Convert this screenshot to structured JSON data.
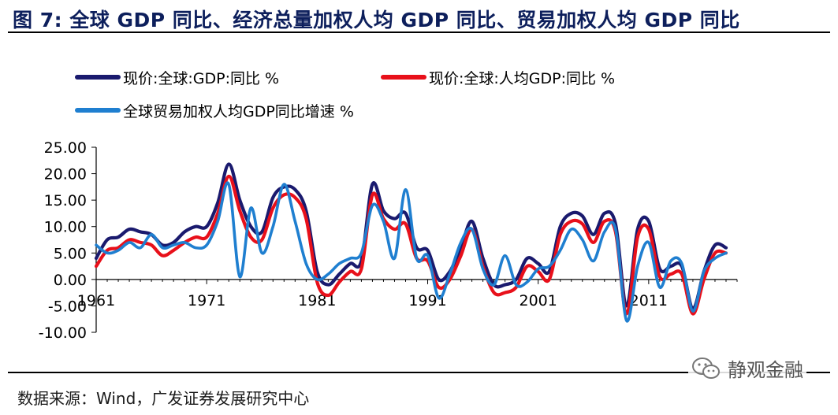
{
  "header": {
    "title": "图 7:  全球 GDP 同比、经济总量加权人均 GDP 同比、贸易加权人均 GDP 同比"
  },
  "footer": {
    "source": "数据来源：Wind，广发证券发展研究中心"
  },
  "watermark": {
    "text": "静观金融",
    "icon": "wechat-icon"
  },
  "chart_data": {
    "type": "line",
    "title": "",
    "xlabel": "",
    "ylabel": "",
    "ylim": [
      -10,
      25
    ],
    "ytick_labels": [
      "25.00",
      "20.00",
      "15.00",
      "10.00",
      "5.00",
      "0.00",
      "-5.00",
      "-10.00"
    ],
    "ytick_values": [
      25,
      20,
      15,
      10,
      5,
      0,
      -5,
      -10
    ],
    "xtick_labels": [
      "1961",
      "1971",
      "1981",
      "1991",
      "2001",
      "2011"
    ],
    "xtick_values": [
      1961,
      1971,
      1981,
      1991,
      2001,
      2011
    ],
    "x": [
      1961,
      1962,
      1963,
      1964,
      1965,
      1966,
      1967,
      1968,
      1969,
      1970,
      1971,
      1972,
      1973,
      1974,
      1975,
      1976,
      1977,
      1978,
      1979,
      1980,
      1981,
      1982,
      1983,
      1984,
      1985,
      1986,
      1987,
      1988,
      1989,
      1990,
      1991,
      1992,
      1993,
      1994,
      1995,
      1996,
      1997,
      1998,
      1999,
      2000,
      2001,
      2002,
      2003,
      2004,
      2005,
      2006,
      2007,
      2008,
      2009,
      2010,
      2011,
      2012,
      2013,
      2014,
      2015,
      2016,
      2017,
      2018
    ],
    "series": [
      {
        "name": "现价:全球:GDP:同比 %",
        "color": "#1a1a6e",
        "values": [
          4.0,
          7.5,
          8.0,
          9.5,
          9.0,
          8.5,
          6.5,
          7.0,
          9.0,
          10.0,
          10.0,
          14.5,
          21.8,
          15.0,
          10.0,
          9.0,
          15.5,
          17.5,
          17.0,
          13.0,
          1.5,
          -1.0,
          1.0,
          3.0,
          3.5,
          18.0,
          13.0,
          11.5,
          12.5,
          6.0,
          5.5,
          0.0,
          1.5,
          6.0,
          11.0,
          4.0,
          -1.0,
          -1.0,
          0.0,
          4.0,
          3.0,
          1.5,
          10.0,
          12.5,
          12.0,
          8.5,
          12.5,
          10.5,
          -5.0,
          9.5,
          11.0,
          2.0,
          2.5,
          2.5,
          -5.5,
          1.5,
          6.5,
          6.0
        ]
      },
      {
        "name": "现价:全球:人均GDP:同比 %",
        "color": "#e8101a",
        "values": [
          2.5,
          5.5,
          6.0,
          7.5,
          7.0,
          6.5,
          4.5,
          5.5,
          7.0,
          8.0,
          8.0,
          12.5,
          19.5,
          13.0,
          8.0,
          7.5,
          13.5,
          16.0,
          15.5,
          11.5,
          -0.5,
          -3.0,
          -0.5,
          1.5,
          2.0,
          16.0,
          11.5,
          9.5,
          10.5,
          4.0,
          3.5,
          -1.5,
          0.0,
          4.5,
          9.5,
          2.5,
          -2.5,
          -2.5,
          -1.5,
          2.5,
          1.5,
          0.0,
          8.5,
          11.0,
          10.5,
          7.0,
          11.0,
          9.0,
          -6.5,
          8.0,
          9.5,
          0.5,
          1.0,
          1.0,
          -6.5,
          0.0,
          5.0,
          5.0
        ]
      },
      {
        "name": "全球贸易加权人均GDP同比增速 %",
        "color": "#1f7fd0",
        "values": [
          6.5,
          5.0,
          5.5,
          7.0,
          6.0,
          8.5,
          6.0,
          6.5,
          7.0,
          6.0,
          6.5,
          11.0,
          18.0,
          0.5,
          13.5,
          5.0,
          10.0,
          18.0,
          11.0,
          3.0,
          0.0,
          1.0,
          3.0,
          4.0,
          5.0,
          14.0,
          11.0,
          4.0,
          17.0,
          4.0,
          4.5,
          -3.5,
          1.0,
          7.0,
          9.5,
          2.0,
          -1.0,
          4.5,
          -1.0,
          -0.5,
          2.0,
          2.5,
          5.5,
          9.5,
          7.5,
          3.5,
          9.0,
          9.5,
          -7.8,
          2.5,
          7.0,
          -1.5,
          3.5,
          3.0,
          -6.0,
          1.5,
          4.0,
          5.0
        ]
      }
    ],
    "legend_position": "top-left",
    "grid": false
  }
}
